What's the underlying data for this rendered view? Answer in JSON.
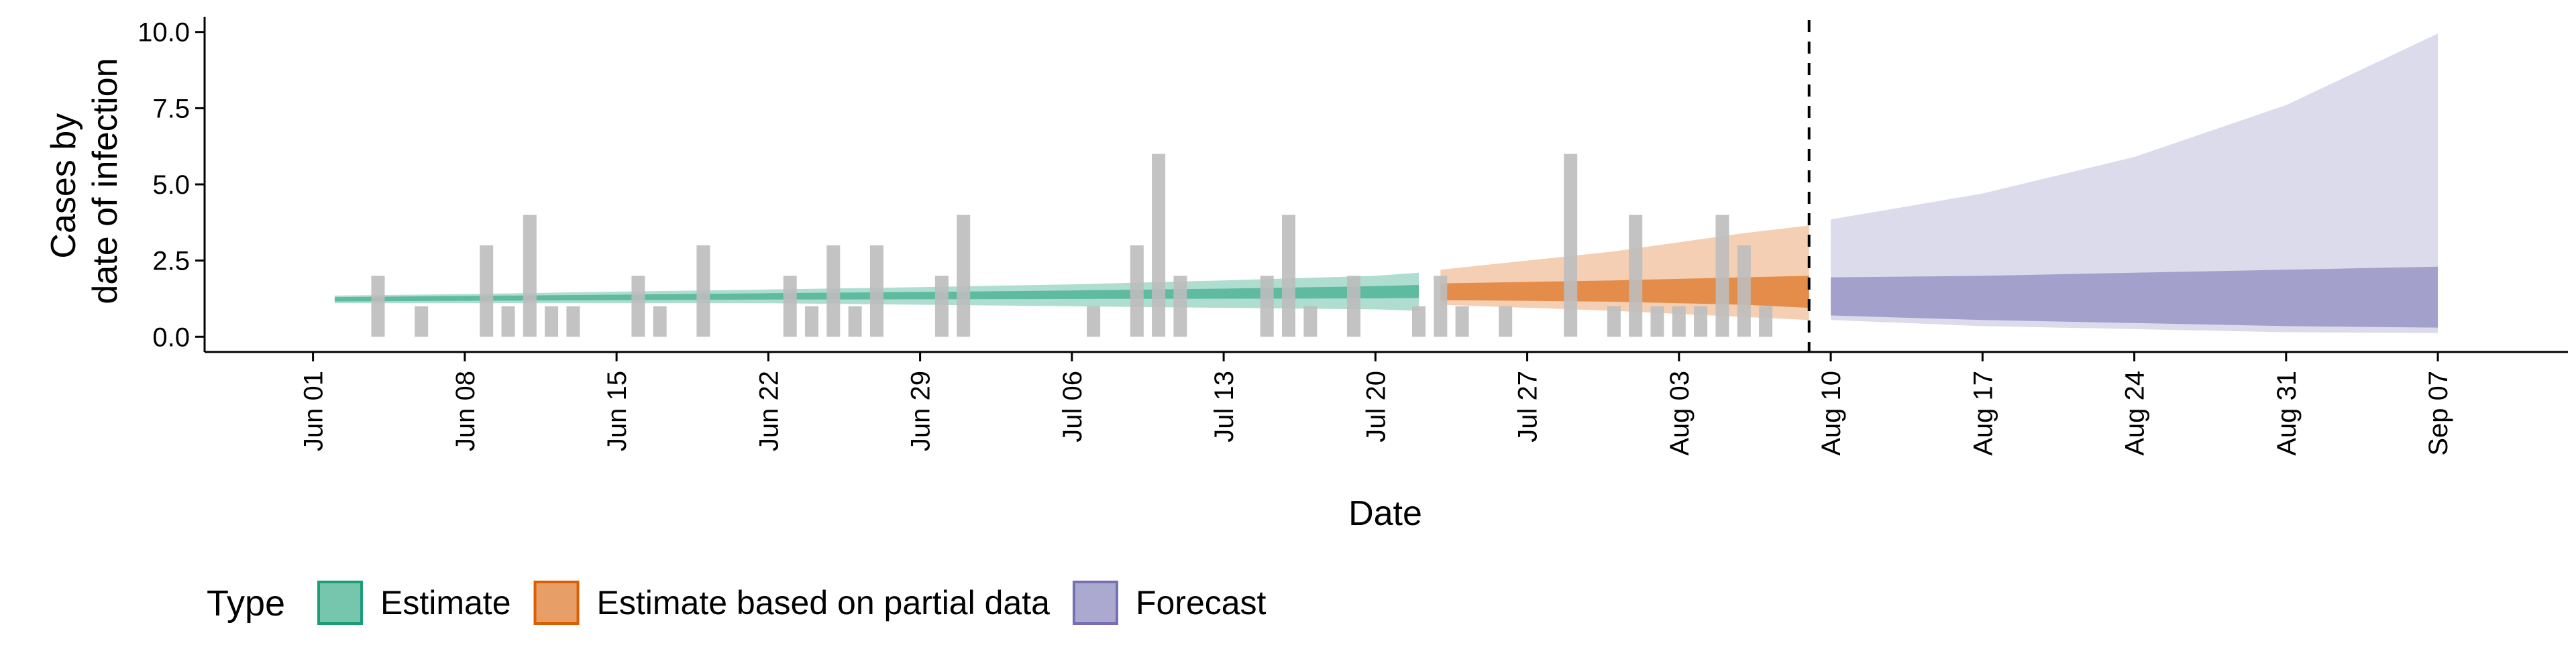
{
  "chart_data": {
    "type": "area",
    "title": "",
    "xlabel": "Date",
    "ylabel_lines": [
      "Cases by",
      "date of infection"
    ],
    "x_tick_labels": [
      "Jun 01",
      "Jun 08",
      "Jun 15",
      "Jun 22",
      "Jun 29",
      "Jul 06",
      "Jul 13",
      "Jul 20",
      "Jul 27",
      "Aug 03",
      "Aug 10",
      "Aug 17",
      "Aug 24",
      "Aug 31",
      "Sep 07"
    ],
    "x_tick_dates": [
      "2020-06-01",
      "2020-06-08",
      "2020-06-15",
      "2020-06-22",
      "2020-06-29",
      "2020-07-06",
      "2020-07-13",
      "2020-07-20",
      "2020-07-27",
      "2020-08-03",
      "2020-08-10",
      "2020-08-17",
      "2020-08-24",
      "2020-08-31",
      "2020-09-07"
    ],
    "y_tick_labels": [
      "0.0",
      "2.5",
      "5.0",
      "7.5",
      "10.0"
    ],
    "y_ticks": [
      0,
      2.5,
      5,
      7.5,
      10
    ],
    "xlim": [
      "2020-05-27",
      "2020-09-13"
    ],
    "ylim": [
      -0.5,
      10.5
    ],
    "grid": false,
    "forecast_date": "2020-08-09",
    "observed_cases": {
      "color": "#bdbdbd",
      "points": [
        {
          "date": "2020-06-04",
          "value": 2
        },
        {
          "date": "2020-06-06",
          "value": 1
        },
        {
          "date": "2020-06-09",
          "value": 3
        },
        {
          "date": "2020-06-10",
          "value": 1
        },
        {
          "date": "2020-06-11",
          "value": 4
        },
        {
          "date": "2020-06-12",
          "value": 1
        },
        {
          "date": "2020-06-13",
          "value": 1
        },
        {
          "date": "2020-06-16",
          "value": 2
        },
        {
          "date": "2020-06-17",
          "value": 1
        },
        {
          "date": "2020-06-19",
          "value": 3
        },
        {
          "date": "2020-06-23",
          "value": 2
        },
        {
          "date": "2020-06-24",
          "value": 1
        },
        {
          "date": "2020-06-25",
          "value": 3
        },
        {
          "date": "2020-06-26",
          "value": 1
        },
        {
          "date": "2020-06-27",
          "value": 3
        },
        {
          "date": "2020-06-30",
          "value": 2
        },
        {
          "date": "2020-07-01",
          "value": 4
        },
        {
          "date": "2020-07-07",
          "value": 1
        },
        {
          "date": "2020-07-09",
          "value": 3
        },
        {
          "date": "2020-07-10",
          "value": 6
        },
        {
          "date": "2020-07-11",
          "value": 2
        },
        {
          "date": "2020-07-15",
          "value": 2
        },
        {
          "date": "2020-07-16",
          "value": 4
        },
        {
          "date": "2020-07-17",
          "value": 1
        },
        {
          "date": "2020-07-19",
          "value": 2
        },
        {
          "date": "2020-07-22",
          "value": 1
        },
        {
          "date": "2020-07-23",
          "value": 2
        },
        {
          "date": "2020-07-24",
          "value": 1
        },
        {
          "date": "2020-07-26",
          "value": 1
        },
        {
          "date": "2020-07-29",
          "value": 6
        },
        {
          "date": "2020-07-31",
          "value": 1
        },
        {
          "date": "2020-08-01",
          "value": 4
        },
        {
          "date": "2020-08-02",
          "value": 1
        },
        {
          "date": "2020-08-03",
          "value": 1
        },
        {
          "date": "2020-08-04",
          "value": 1
        },
        {
          "date": "2020-08-05",
          "value": 4
        },
        {
          "date": "2020-08-06",
          "value": 3
        },
        {
          "date": "2020-08-07",
          "value": 1
        }
      ]
    },
    "series": [
      {
        "name": "Estimate",
        "color": "#1b9e77",
        "outer_opacity": 0.35,
        "inner_opacity": 0.55,
        "x": [
          "2020-06-02",
          "2020-06-08",
          "2020-06-15",
          "2020-06-22",
          "2020-06-29",
          "2020-07-06",
          "2020-07-13",
          "2020-07-20",
          "2020-07-22"
        ],
        "outer_upper": [
          1.35,
          1.4,
          1.48,
          1.55,
          1.63,
          1.72,
          1.85,
          2.0,
          2.1
        ],
        "outer_lower": [
          1.1,
          1.1,
          1.1,
          1.1,
          1.05,
          1.0,
          0.95,
          0.9,
          0.85
        ],
        "inner_upper": [
          1.3,
          1.34,
          1.38,
          1.43,
          1.47,
          1.52,
          1.58,
          1.66,
          1.7
        ],
        "inner_lower": [
          1.16,
          1.18,
          1.2,
          1.22,
          1.23,
          1.24,
          1.25,
          1.26,
          1.27
        ]
      },
      {
        "name": "Estimate based on partial data",
        "color": "#d95f02",
        "outer_opacity": 0.3,
        "inner_opacity": 0.6,
        "x": [
          "2020-07-23",
          "2020-07-27",
          "2020-07-31",
          "2020-08-03",
          "2020-08-06",
          "2020-08-09"
        ],
        "outer_upper": [
          2.2,
          2.5,
          2.8,
          3.1,
          3.4,
          3.65
        ],
        "outer_lower": [
          1.05,
          0.95,
          0.85,
          0.75,
          0.65,
          0.55
        ],
        "inner_upper": [
          1.75,
          1.8,
          1.85,
          1.9,
          1.95,
          2.0
        ],
        "inner_lower": [
          1.2,
          1.18,
          1.15,
          1.1,
          1.05,
          0.95
        ]
      },
      {
        "name": "Forecast",
        "color": "#7570b3",
        "outer_opacity": 0.25,
        "inner_opacity": 0.55,
        "x": [
          "2020-08-10",
          "2020-08-17",
          "2020-08-24",
          "2020-08-31",
          "2020-09-07"
        ],
        "outer_upper": [
          3.85,
          4.7,
          5.9,
          7.6,
          9.95
        ],
        "outer_lower": [
          0.55,
          0.35,
          0.25,
          0.15,
          0.12
        ],
        "inner_upper": [
          1.95,
          2.0,
          2.1,
          2.2,
          2.3
        ],
        "inner_lower": [
          0.7,
          0.55,
          0.45,
          0.35,
          0.3
        ]
      }
    ],
    "legend": {
      "title": "Type",
      "position": "bottom-left",
      "entries": [
        "Estimate",
        "Estimate based on partial data",
        "Forecast"
      ]
    }
  }
}
